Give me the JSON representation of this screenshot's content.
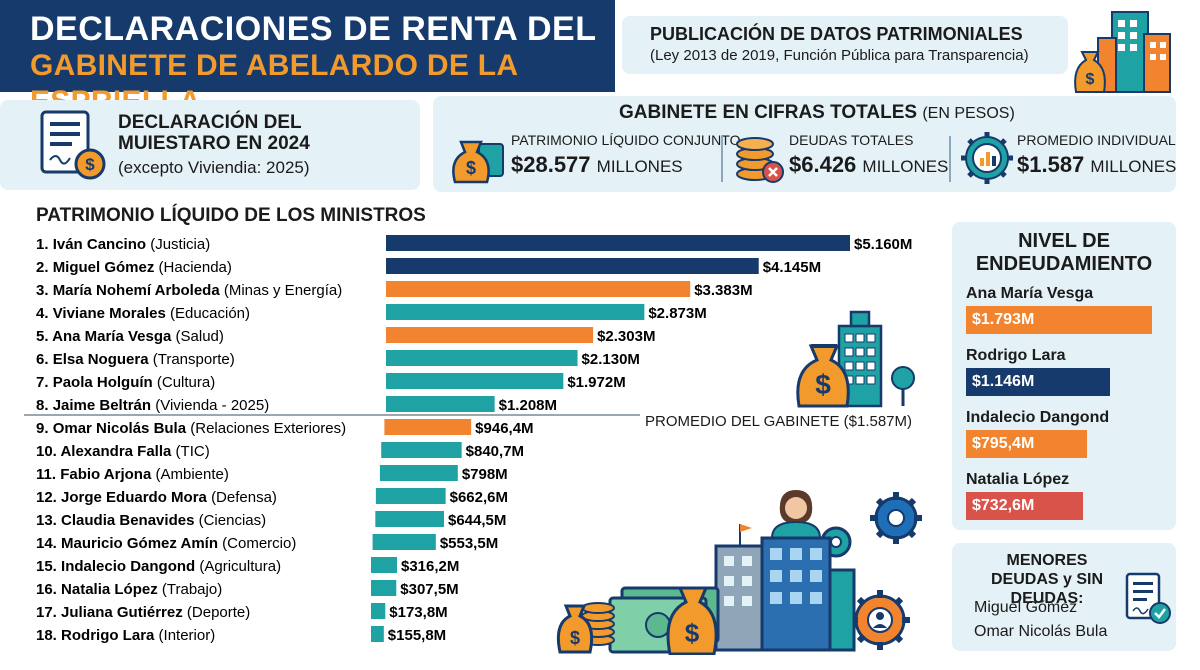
{
  "header": {
    "title_line1": "DECLARACIONES DE RENTA DEL",
    "title_line2": "GABINETE DE ABELARDO DE LA ESPRIELLA"
  },
  "publication": {
    "title": "PUBLICACIÓN DE DATOS PATRIMONIALES",
    "subtitle": "(Ley 2013 de 2019, Función Pública para Transparencia)"
  },
  "declaration": {
    "title": "DECLARACIÓN DEL MUIESTARO EN 2024",
    "subtitle": "(excepto Viviendia: 2025)"
  },
  "totals": {
    "title": "GABINETE EN CIFRAS TOTALES",
    "title_unit": "(EN PESOS)",
    "kpis": [
      {
        "label": "PATRIMONIO LÍQUIDO CONJUNTO",
        "value": "$28.577",
        "unit": "MILLONES",
        "icon": "money-bag-icon"
      },
      {
        "label": "DEUDAS TOTALES",
        "value": "$6.426",
        "unit": "MILLONES",
        "icon": "coins-debt-icon"
      },
      {
        "label": "PROMEDIO INDIVIDUAL",
        "value": "$1.587",
        "unit": "MILLONES",
        "icon": "gear-chart-icon"
      }
    ]
  },
  "chart_data": {
    "type": "bar",
    "title": "PATRIMONIO LÍQUIDO DE LOS MINISTROS",
    "orientation": "horizontal",
    "unit": "millones de pesos",
    "categories": [
      "Iván Cancino (Justicia)",
      "Miguel Gómez (Hacienda)",
      "María Nohemí Arboleda (Minas y Energía)",
      "Viviane Morales (Educación)",
      "Ana María Vesga (Salud)",
      "Elsa Noguera (Transporte)",
      "Paola Holguín (Cultura)",
      "Jaime Beltrán (Vivienda - 2025)",
      "Omar Nicolás Bula (Relaciones Exteriores)",
      "Alexandra Falla (TIC)",
      "Fabio Arjona (Ambiente)",
      "Jorge Eduardo Mora (Defensa)",
      "Claudia Benavides (Ciencias)",
      "Mauricio Gómez Amín (Comercio)",
      "Indalecio Dangond (Agricultura)",
      "Natalia López (Trabajo)",
      "Juliana Gutiérrez (Deporte)",
      "Rodrigo Lara (Interior)"
    ],
    "rows": [
      {
        "rank": "1.",
        "name": "Iván Cancino",
        "ministry": "(Justicia)",
        "value": 5160,
        "label": "$5.160M",
        "color": "#163a6b"
      },
      {
        "rank": "2.",
        "name": "Miguel Gómez",
        "ministry": "(Hacienda)",
        "value": 4145,
        "label": "$4.145M",
        "color": "#163a6b"
      },
      {
        "rank": "3.",
        "name": "María Nohemí Arboleda",
        "ministry": "(Minas y Energía)",
        "value": 3383,
        "label": "$3.383M",
        "color": "#f2842f"
      },
      {
        "rank": "4.",
        "name": "Viviane Morales",
        "ministry": "(Educación)",
        "value": 2873,
        "label": "$2.873M",
        "color": "#1fa2a4"
      },
      {
        "rank": "5.",
        "name": "Ana María Vesga",
        "ministry": "(Salud)",
        "value": 2303,
        "label": "$2.303M",
        "color": "#f2842f"
      },
      {
        "rank": "6.",
        "name": "Elsa Noguera",
        "ministry": "(Transporte)",
        "value": 2130,
        "label": "$2.130M",
        "color": "#1fa2a4"
      },
      {
        "rank": "7.",
        "name": "Paola Holguín",
        "ministry": "(Cultura)",
        "value": 1972,
        "label": "$1.972M",
        "color": "#1fa2a4"
      },
      {
        "rank": "8.",
        "name": "Jaime Beltrán",
        "ministry": "(Vivienda - 2025)",
        "value": 1208,
        "label": "$1.208M",
        "color": "#1fa2a4"
      },
      {
        "rank": "9.",
        "name": "Omar Nicolás Bula",
        "ministry": "(Relaciones Exteriores)",
        "value": 946.4,
        "label": "$946,4M",
        "color": "#f2842f"
      },
      {
        "rank": "10.",
        "name": "Alexandra Falla",
        "ministry": "(TIC)",
        "value": 840.7,
        "label": "$840,7M",
        "color": "#1fa2a4"
      },
      {
        "rank": "11.",
        "name": "Fabio Arjona",
        "ministry": "(Ambiente)",
        "value": 798,
        "label": "$798M",
        "color": "#1fa2a4"
      },
      {
        "rank": "12.",
        "name": "Jorge Eduardo Mora",
        "ministry": "(Defensa)",
        "value": 662.6,
        "label": "$662,6M",
        "color": "#1fa2a4"
      },
      {
        "rank": "13.",
        "name": "Claudia Benavides",
        "ministry": "(Ciencias)",
        "value": 644.5,
        "label": "$644,5M",
        "color": "#1fa2a4"
      },
      {
        "rank": "14.",
        "name": "Mauricio Gómez Amín",
        "ministry": "(Comercio)",
        "value": 553.5,
        "label": "$553,5M",
        "color": "#1fa2a4"
      },
      {
        "rank": "15.",
        "name": "Indalecio Dangond",
        "ministry": "(Agricultura)",
        "value": 316.2,
        "label": "$316,2M",
        "color": "#1fa2a4"
      },
      {
        "rank": "16.",
        "name": "Natalia López",
        "ministry": "(Trabajo)",
        "value": 307.5,
        "label": "$307,5M",
        "color": "#1fa2a4"
      },
      {
        "rank": "17.",
        "name": "Juliana Gutiérrez",
        "ministry": "(Deporte)",
        "value": 173.8,
        "label": "$173,8M",
        "color": "#1fa2a4"
      },
      {
        "rank": "18.",
        "name": "Rodrigo Lara",
        "ministry": "(Interior)",
        "value": 155.8,
        "label": "$155,8M",
        "color": "#1fa2a4"
      }
    ],
    "average": {
      "label": "PROMEDIO DEL GABINETE ($1.587M)",
      "value": 1587
    },
    "xlim": [
      0,
      5160
    ],
    "grid": false
  },
  "debt": {
    "title": "NIVEL DE ENDEUDAMIENTO",
    "items": [
      {
        "name": "Ana María Vesga",
        "value": 1793,
        "label": "$1.793M",
        "color": "#f2842f"
      },
      {
        "name": "Rodrigo Lara",
        "value": 1146,
        "label": "$1.146M",
        "color": "#163a6b"
      },
      {
        "name": "Indalecio Dangond",
        "value": 795.4,
        "label": "$795,4M",
        "color": "#f2842f"
      },
      {
        "name": "Natalia López",
        "value": 732.6,
        "label": "$732,6M",
        "color": "#d9534a"
      }
    ]
  },
  "low_debt": {
    "title": "MENORES DEUDAS y SIN DEUDAS:",
    "names": [
      "Miguel Gómez",
      "Omar Nicolás Bula"
    ]
  }
}
